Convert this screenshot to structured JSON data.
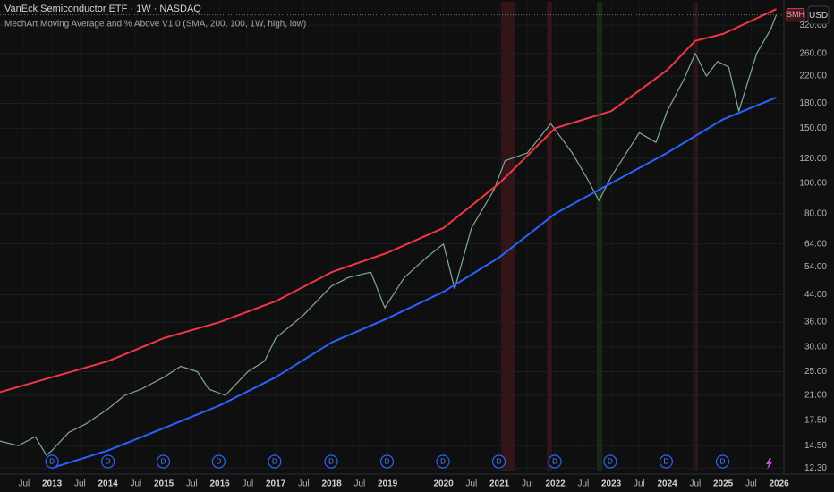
{
  "chart_data": {
    "type": "line",
    "title": "VanEck Semiconductor ETF · 1W · NASDAQ",
    "subtitle": "MechArt Moving Average and % Above V1.0 (SMA, 200, 100, 1W, high, low)",
    "currency": "USD",
    "symbol": "SMH",
    "log_scale": true,
    "grid": true,
    "xlim": [
      2012.07,
      2026.07
    ],
    "ylim": [
      12,
      380
    ],
    "xticks": [
      {
        "value": 2012.5,
        "label": "Jul"
      },
      2013,
      {
        "value": 2013.5,
        "label": "Jul"
      },
      2014,
      {
        "value": 2014.5,
        "label": "Jul"
      },
      2015,
      {
        "value": 2015.5,
        "label": "Jul"
      },
      2016,
      {
        "value": 2016.5,
        "label": "Jul"
      },
      2017,
      {
        "value": 2017.5,
        "label": "Jul"
      },
      2018,
      {
        "value": 2018.5,
        "label": "Jul"
      },
      2019,
      2020,
      {
        "value": 2020.5,
        "label": "Jul"
      },
      2021,
      {
        "value": 2021.5,
        "label": "Jul"
      },
      2022,
      {
        "value": 2022.5,
        "label": "Jul"
      },
      2023,
      {
        "value": 2023.5,
        "label": "Jul"
      },
      2024,
      {
        "value": 2024.5,
        "label": "Jul"
      },
      2025,
      {
        "value": 2025.5,
        "label": "Jul"
      },
      2026
    ],
    "yticks": [
      {
        "value": 320,
        "label": "320.00"
      },
      {
        "value": 260,
        "label": "260.00"
      },
      {
        "value": 220,
        "label": "220.00"
      },
      {
        "value": 180,
        "label": "180.00"
      },
      {
        "value": 150,
        "label": "150.00"
      },
      {
        "value": 120,
        "label": "120.00"
      },
      {
        "value": 100,
        "label": "100.00"
      },
      {
        "value": 80,
        "label": "80.00"
      },
      {
        "value": 64,
        "label": "64.00"
      },
      {
        "value": 54,
        "label": "54.00"
      },
      {
        "value": 44,
        "label": "44.00"
      },
      {
        "value": 36,
        "label": "36.00"
      },
      {
        "value": 30,
        "label": "30.00"
      },
      {
        "value": 25,
        "label": "25.00"
      },
      {
        "value": 21,
        "label": "21.00"
      },
      {
        "value": 17.5,
        "label": "17.50"
      },
      {
        "value": 14.5,
        "label": "14.50"
      },
      {
        "value": 12.3,
        "label": "12.30"
      }
    ],
    "series": [
      {
        "color": "#7fa99b",
        "x": [
          2012.07,
          2012.4,
          2012.7,
          2012.9,
          2013.0,
          2013.3,
          2013.6,
          2014.0,
          2014.3,
          2014.6,
          2015.0,
          2015.3,
          2015.6,
          2015.8,
          2016.1,
          2016.5,
          2016.8,
          2017.0,
          2017.5,
          2018.0,
          2018.3,
          2018.7,
          2018.95,
          2019.3,
          2019.7,
          2020.0,
          2020.2,
          2020.5,
          2020.9,
          2021.1,
          2021.5,
          2021.92,
          2022.3,
          2022.55,
          2022.78,
          2023.0,
          2023.5,
          2023.8,
          2024.0,
          2024.3,
          2024.5,
          2024.7,
          2024.9,
          2025.1,
          2025.28,
          2025.6,
          2025.85,
          2025.95
        ],
        "values": [
          15,
          14.5,
          15.5,
          13.5,
          14,
          16,
          17,
          19,
          21,
          22,
          24,
          26,
          25,
          22,
          21,
          25,
          27,
          32,
          38,
          47,
          50,
          52,
          40,
          50,
          58,
          64,
          46,
          72,
          95,
          118,
          125,
          155,
          125,
          105,
          88,
          105,
          145,
          135,
          170,
          215,
          260,
          220,
          245,
          235,
          170,
          260,
          310,
          345
        ]
      },
      {
        "color": "#f23645",
        "x": [
          2012.07,
          2013.0,
          2014.0,
          2015.0,
          2016.0,
          2017.0,
          2018.0,
          2019.0,
          2020.0,
          2021.0,
          2022.0,
          2023.0,
          2024.0,
          2024.5,
          2025.0,
          2025.5,
          2025.95
        ],
        "values": [
          21.5,
          24,
          27,
          32,
          36,
          42,
          52,
          60,
          72,
          100,
          150,
          170,
          230,
          285,
          300,
          330,
          360
        ]
      },
      {
        "color": "#2962ff",
        "x": [
          2013.0,
          2014.0,
          2015.0,
          2016.0,
          2017.0,
          2018.0,
          2019.0,
          2020.0,
          2021.0,
          2022.0,
          2023.0,
          2024.0,
          2025.0,
          2025.95
        ],
        "values": [
          12.3,
          14,
          16.5,
          19.5,
          24,
          31,
          37,
          45,
          58,
          80,
          100,
          125,
          160,
          188
        ]
      }
    ],
    "bands": [
      {
        "x": [
          2021.03,
          2021.27
        ],
        "color": "#f23645"
      },
      {
        "x": [
          2021.85,
          2021.94
        ],
        "color": "#f23645"
      },
      {
        "x": [
          2022.74,
          2022.84
        ],
        "color": "#4caf50"
      },
      {
        "x": [
          2024.46,
          2024.55
        ],
        "color": "#f23645"
      }
    ],
    "dividends": {
      "label": "D",
      "x": [
        2013.0,
        2014.0,
        2014.99,
        2015.98,
        2016.98,
        2017.99,
        2018.99,
        2019.99,
        2020.99,
        2021.99,
        2022.98,
        2023.98,
        2024.99
      ]
    }
  }
}
